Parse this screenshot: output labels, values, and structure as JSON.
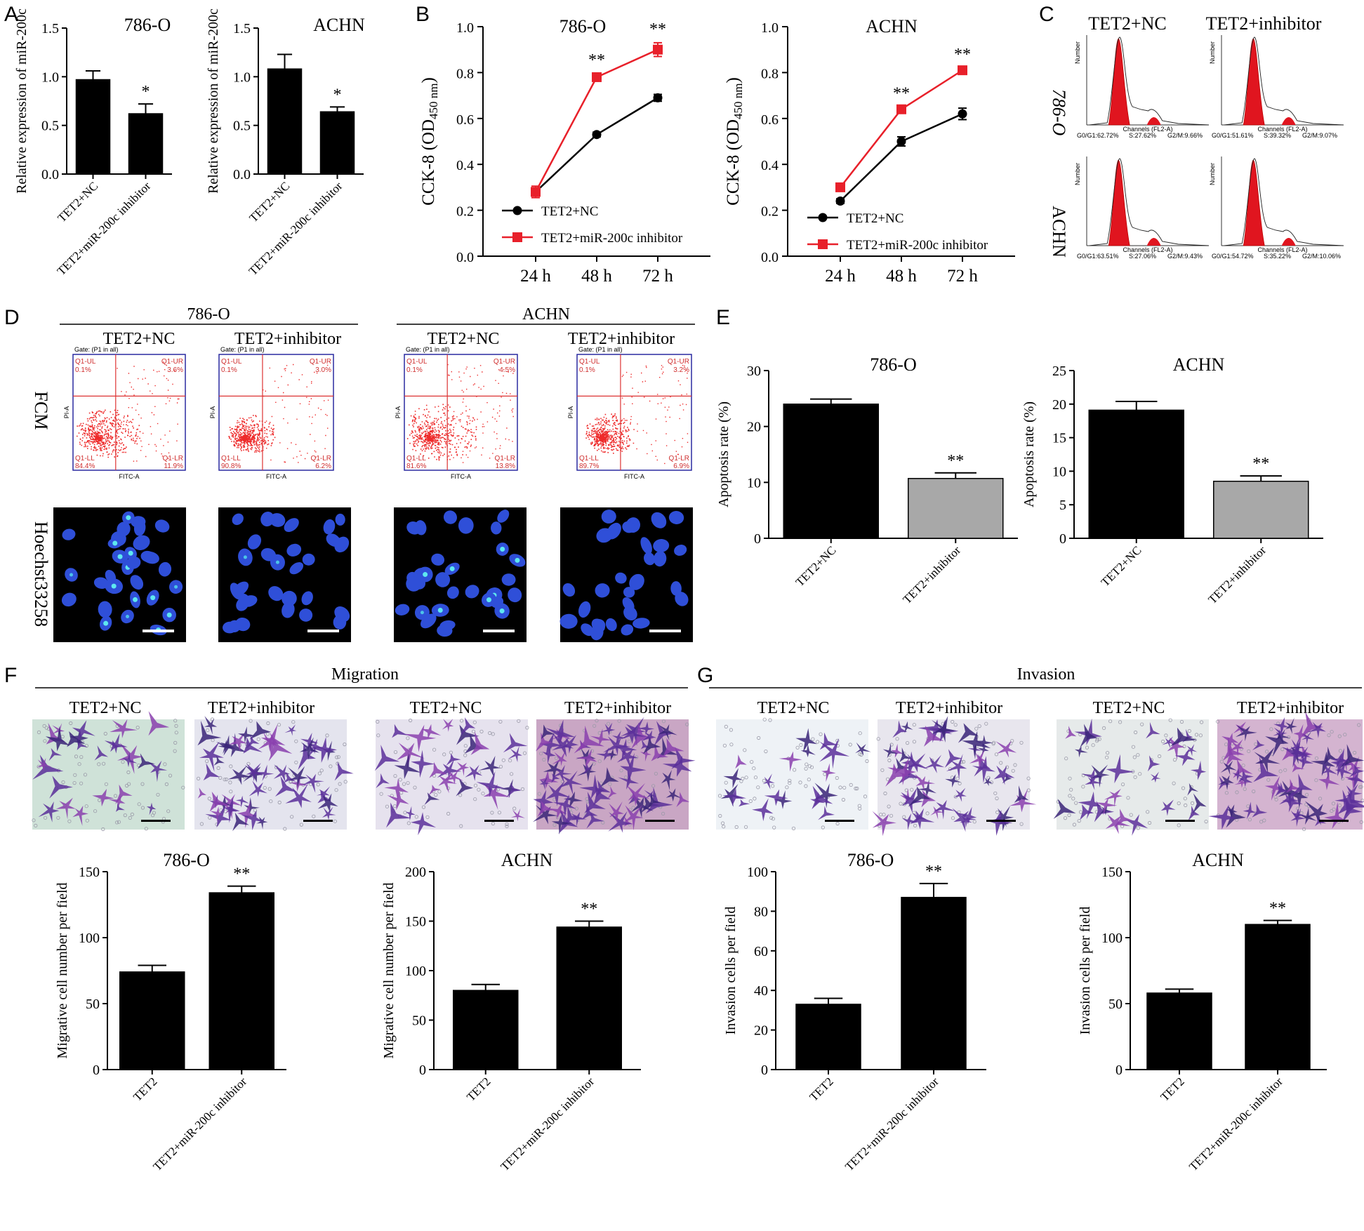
{
  "panel_labels": [
    "A",
    "B",
    "C",
    "D",
    "E",
    "F",
    "G"
  ],
  "sections": {
    "migration": "Migration",
    "invasion": "Invasion"
  },
  "column_labels": {
    "nc": "TET2+NC",
    "inhibitor": "TET2+inhibitor"
  },
  "cell_lines": [
    "786-O",
    "ACHN"
  ],
  "row_labels": {
    "fcm": "FCM",
    "hoechst": "Hoechst33258"
  },
  "flow": {
    "gate": "Gate: (P1 in all)",
    "xaxis": "FITC-A",
    "yaxis": "PI-A",
    "quadrant_names": {
      "ul": "Q1-UL",
      "ur": "Q1-UR",
      "ll": "Q1-LL",
      "lr": "Q1-LR"
    },
    "plots": [
      {
        "ul": "0.1%",
        "ur": "3.6%",
        "ll": "84.4%",
        "lr": "11.9%"
      },
      {
        "ul": "0.1%",
        "ur": "3.0%",
        "ll": "90.8%",
        "lr": "6.2%"
      },
      {
        "ul": "0.1%",
        "ur": "4.5%",
        "ll": "81.6%",
        "lr": "13.8%"
      },
      {
        "ul": "0.1%",
        "ur": "3.2%",
        "ll": "89.7%",
        "lr": "6.9%"
      }
    ]
  },
  "cell_cycle": {
    "xlabel": "Channels (FL2-A)",
    "ylabel": "Number",
    "plots": [
      {
        "g0g1": "G0/G1:62.72%",
        "s": "S:27.62%",
        "g2m": "G2/M:9.66%"
      },
      {
        "g0g1": "G0/G1:51.61%",
        "s": "S:39.32%",
        "g2m": "G2/M:9.07%"
      },
      {
        "g0g1": "G0/G1:63.51%",
        "s": "S:27.06%",
        "g2m": "G2/M:9.43%"
      },
      {
        "g0g1": "G0/G1:54.72%",
        "s": "S:35.22%",
        "g2m": "G2/M:10.06%"
      }
    ]
  },
  "chart_data": [
    {
      "id": "A1",
      "type": "bar",
      "title": "786-O",
      "ylabel": "Relative expression of miR-200c",
      "categories": [
        "TET2+NC",
        "TET2+miR-200c inhibitor"
      ],
      "values": [
        0.97,
        0.62
      ],
      "errors": [
        0.09,
        0.1
      ],
      "significance": [
        "",
        "*"
      ],
      "ylim": [
        0,
        1.5
      ],
      "yticks": [
        "0.0",
        "0.5",
        "1.0",
        "1.5"
      ],
      "colors": [
        "#000000",
        "#000000"
      ]
    },
    {
      "id": "A2",
      "type": "bar",
      "title": "ACHN",
      "ylabel": "Relative expression of miR-200c",
      "categories": [
        "TET2+NC",
        "TET2+miR-200c inhibitor"
      ],
      "values": [
        1.08,
        0.64
      ],
      "errors": [
        0.15,
        0.05
      ],
      "significance": [
        "",
        "*"
      ],
      "ylim": [
        0,
        1.5
      ],
      "yticks": [
        "0.0",
        "0.5",
        "1.0",
        "1.5"
      ],
      "colors": [
        "#000000",
        "#000000"
      ]
    },
    {
      "id": "B1",
      "type": "line",
      "title": "786-O",
      "ylabel_main": "CCK-8 (OD",
      "ylabel_sub": "450 nm",
      "ylabel_end": ")",
      "x": [
        "24 h",
        "48 h",
        "72 h"
      ],
      "ylim": [
        0,
        1.0
      ],
      "yticks": [
        "0.0",
        "0.2",
        "0.4",
        "0.6",
        "0.8",
        "1.0"
      ],
      "series": [
        {
          "name": "TET2+NC",
          "color": "#000000",
          "marker": "circle",
          "values": [
            0.28,
            0.53,
            0.69
          ],
          "errors": [
            0.01,
            0.01,
            0.015
          ]
        },
        {
          "name": "TET2+miR-200c inhibitor",
          "color": "#e8202a",
          "marker": "square",
          "values": [
            0.28,
            0.78,
            0.9
          ],
          "errors": [
            0.025,
            0.015,
            0.03
          ]
        }
      ],
      "significance": [
        "",
        "**",
        "**"
      ]
    },
    {
      "id": "B2",
      "type": "line",
      "title": "ACHN",
      "ylabel_main": "CCK-8 (OD",
      "ylabel_sub": "450 nm",
      "ylabel_end": ")",
      "x": [
        "24 h",
        "48 h",
        "72 h"
      ],
      "ylim": [
        0,
        1.0
      ],
      "yticks": [
        "0.0",
        "0.2",
        "0.4",
        "0.6",
        "0.8",
        "1.0"
      ],
      "series": [
        {
          "name": "TET2+NC",
          "color": "#000000",
          "marker": "circle",
          "values": [
            0.24,
            0.5,
            0.62
          ],
          "errors": [
            0.01,
            0.02,
            0.025
          ]
        },
        {
          "name": "TET2+miR-200c inhibitor",
          "color": "#e8202a",
          "marker": "square",
          "values": [
            0.3,
            0.64,
            0.81
          ],
          "errors": [
            0.01,
            0.01,
            0.01
          ]
        }
      ],
      "significance": [
        "",
        "**",
        "**"
      ]
    },
    {
      "id": "E1",
      "type": "bar",
      "title": "786-O",
      "ylabel": "Apoptosis rate (%)",
      "categories": [
        "TET2+NC",
        "TET2+inhibitor"
      ],
      "values": [
        24.0,
        10.7
      ],
      "errors": [
        0.9,
        1.0
      ],
      "significance": [
        "",
        "**"
      ],
      "ylim": [
        0,
        30
      ],
      "yticks": [
        "0",
        "10",
        "20",
        "30"
      ],
      "colors": [
        "#000000",
        "#a8a8a8"
      ]
    },
    {
      "id": "E2",
      "type": "bar",
      "title": "ACHN",
      "ylabel": "Apoptosis rate (%)",
      "categories": [
        "TET2+NC",
        "TET2+inhibitor"
      ],
      "values": [
        19.1,
        8.5
      ],
      "errors": [
        1.3,
        0.8
      ],
      "significance": [
        "",
        "**"
      ],
      "ylim": [
        0,
        25
      ],
      "yticks": [
        "0",
        "5",
        "10",
        "15",
        "20",
        "25"
      ],
      "colors": [
        "#000000",
        "#a8a8a8"
      ]
    },
    {
      "id": "F1",
      "type": "bar",
      "title": "786-O",
      "ylabel": "Migrative cell number per field",
      "categories": [
        "TET2",
        "TET2+miR-200c inhibitor"
      ],
      "values": [
        74,
        134
      ],
      "errors": [
        5,
        5
      ],
      "significance": [
        "",
        "**"
      ],
      "ylim": [
        0,
        150
      ],
      "yticks": [
        "0",
        "50",
        "100",
        "150"
      ],
      "colors": [
        "#000000",
        "#000000"
      ]
    },
    {
      "id": "F2",
      "type": "bar",
      "title": "ACHN",
      "ylabel": "Migrative cell number per field",
      "categories": [
        "TET2",
        "TET2+miR-200c inhibitor"
      ],
      "values": [
        80,
        144
      ],
      "errors": [
        6,
        6
      ],
      "significance": [
        "",
        "**"
      ],
      "ylim": [
        0,
        200
      ],
      "yticks": [
        "0",
        "50",
        "100",
        "150",
        "200"
      ],
      "colors": [
        "#000000",
        "#000000"
      ]
    },
    {
      "id": "G1",
      "type": "bar",
      "title": "786-O",
      "ylabel": "Invasion cells per field",
      "categories": [
        "TET2",
        "TET2+miR-200c inhibitor"
      ],
      "values": [
        33,
        87
      ],
      "errors": [
        3,
        7
      ],
      "significance": [
        "",
        "**"
      ],
      "ylim": [
        0,
        100
      ],
      "yticks": [
        "0",
        "20",
        "40",
        "60",
        "80",
        "100"
      ],
      "colors": [
        "#000000",
        "#000000"
      ]
    },
    {
      "id": "G2",
      "type": "bar",
      "title": "ACHN",
      "ylabel": "Invasion cells per field",
      "categories": [
        "TET2",
        "TET2+miR-200c inhibitor"
      ],
      "values": [
        58,
        110
      ],
      "errors": [
        3,
        3
      ],
      "significance": [
        "",
        "**"
      ],
      "ylim": [
        0,
        150
      ],
      "yticks": [
        "0",
        "50",
        "100",
        "150"
      ],
      "colors": [
        "#000000",
        "#000000"
      ]
    }
  ]
}
